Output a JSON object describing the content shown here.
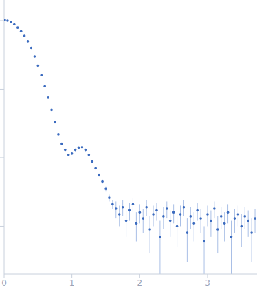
{
  "chart_data": {
    "type": "scatter",
    "log": "y",
    "tick_labels": "x",
    "color": "#3b6bbf",
    "marker": "circle",
    "xlim": [
      0,
      3.73
    ],
    "xticks": [
      0,
      1,
      2,
      3
    ],
    "ylim": [
      0.0002,
      2
    ],
    "yticks": [
      0.001,
      0.01,
      0.1,
      1
    ],
    "x": [
      0.01,
      0.05,
      0.1,
      0.15,
      0.2,
      0.25,
      0.3,
      0.35,
      0.4,
      0.45,
      0.5,
      0.55,
      0.6,
      0.65,
      0.7,
      0.75,
      0.8,
      0.85,
      0.9,
      0.95,
      1.0,
      1.05,
      1.1,
      1.15,
      1.2,
      1.25,
      1.3,
      1.35,
      1.4,
      1.45,
      1.5,
      1.55,
      1.6,
      1.65,
      1.7,
      1.75,
      1.8,
      1.85,
      1.9,
      1.95,
      2.0,
      2.05,
      2.1,
      2.15,
      2.2,
      2.25,
      2.3,
      2.35,
      2.4,
      2.45,
      2.5,
      2.55,
      2.6,
      2.65,
      2.7,
      2.75,
      2.8,
      2.85,
      2.9,
      2.95,
      3.0,
      3.05,
      3.1,
      3.15,
      3.2,
      3.25,
      3.3,
      3.35,
      3.4,
      3.45,
      3.5,
      3.55,
      3.6,
      3.65,
      3.7
    ],
    "values": [
      1.02,
      1.0,
      0.95,
      0.88,
      0.79,
      0.7,
      0.6,
      0.5,
      0.4,
      0.3,
      0.22,
      0.16,
      0.11,
      0.075,
      0.05,
      0.033,
      0.022,
      0.016,
      0.013,
      0.011,
      0.0115,
      0.013,
      0.014,
      0.0142,
      0.013,
      0.011,
      0.0088,
      0.007,
      0.0056,
      0.0045,
      0.0035,
      0.0026,
      0.0021,
      0.0018,
      0.0015,
      0.0019,
      0.0012,
      0.0017,
      0.0021,
      0.0011,
      0.0016,
      0.0013,
      0.0019,
      0.0009,
      0.0015,
      0.0017,
      0.0007,
      0.0014,
      0.0018,
      0.0012,
      0.0016,
      0.001,
      0.0015,
      0.0019,
      0.0008,
      0.0014,
      0.0011,
      0.0017,
      0.0013,
      0.0006,
      0.0015,
      0.0012,
      0.0018,
      0.0009,
      0.0014,
      0.0011,
      0.0016,
      0.0007,
      0.0013,
      0.0015,
      0.001,
      0.0014,
      0.0012,
      0.0008,
      0.0013
    ],
    "errors": [
      0.01,
      0.01,
      0.009,
      0.008,
      0.007,
      0.006,
      0.005,
      0.004,
      0.003,
      0.002,
      0.0015,
      0.001,
      0.0008,
      0.0006,
      0.0004,
      0.0003,
      0.0002,
      0.0002,
      0.0002,
      0.0002,
      0.0002,
      0.0002,
      0.0002,
      0.0003,
      0.0003,
      0.0003,
      0.0003,
      0.0003,
      0.0003,
      0.0003,
      0.0003,
      0.0003,
      0.0003,
      0.0005,
      0.0005,
      0.0005,
      0.0005,
      0.0005,
      0.0005,
      0.0005,
      0.0005,
      0.0005,
      0.0005,
      0.0005,
      0.0005,
      0.0005,
      0.0005,
      0.0005,
      0.0005,
      0.0005,
      0.0005,
      0.0005,
      0.0005,
      0.0005,
      0.0005,
      0.0005,
      0.0005,
      0.0005,
      0.0005,
      0.0004,
      0.0005,
      0.0005,
      0.0005,
      0.0005,
      0.0005,
      0.0005,
      0.0005,
      0.0005,
      0.0005,
      0.0005,
      0.0005,
      0.0005,
      0.0005,
      0.0005,
      0.0005
    ]
  }
}
